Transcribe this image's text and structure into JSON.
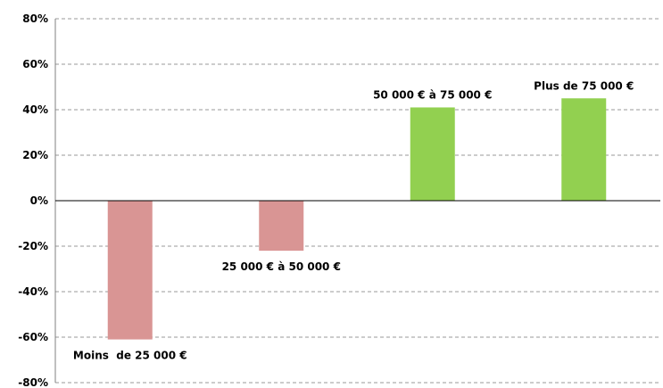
{
  "chart_data": {
    "type": "bar",
    "categories": [
      "Moins  de 25 000 €",
      "25 000 € à 50 000 €",
      "50 000 € à 75 000 €",
      "Plus de 75 000 €"
    ],
    "values": [
      -61,
      -22,
      41,
      45
    ],
    "ylim": [
      -80,
      80
    ],
    "yticks": [
      "80%",
      "60%",
      "40%",
      "20%",
      "0%",
      "-20%",
      "-40%",
      "-60%",
      "-80%"
    ],
    "ytick_values": [
      80,
      60,
      40,
      20,
      0,
      -20,
      -40,
      -60,
      -80
    ],
    "grid": true,
    "colors": {
      "negative": "#d99594",
      "positive": "#92d050",
      "grid": "#9a9a9a"
    }
  }
}
